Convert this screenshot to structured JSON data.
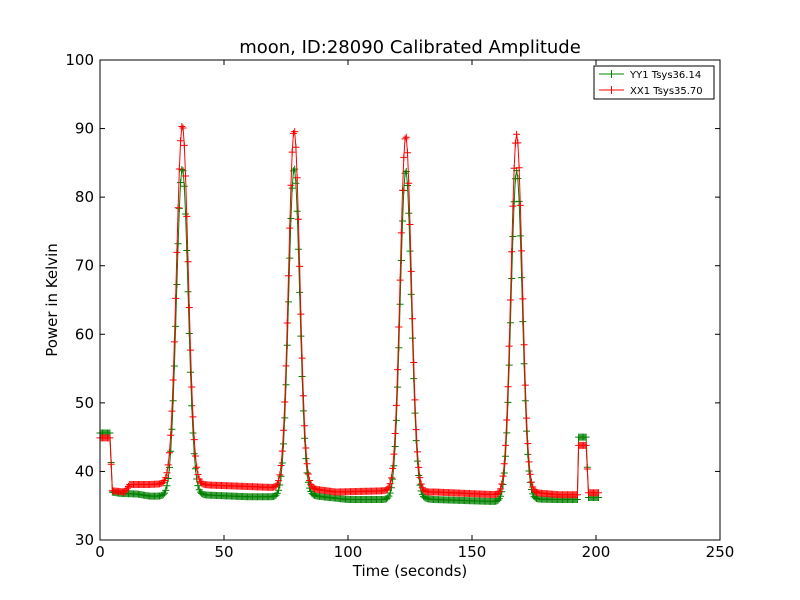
{
  "chart_data": {
    "type": "line",
    "title": "moon, ID:28090 Calibrated Amplitude",
    "xlabel": "Time (seconds)",
    "ylabel": "Power in Kelvin",
    "xlim": [
      0,
      250
    ],
    "ylim": [
      30,
      100
    ],
    "x_ticks": [
      "0",
      "50",
      "100",
      "150",
      "200",
      "250"
    ],
    "y_ticks": [
      "30",
      "40",
      "50",
      "60",
      "70",
      "80",
      "90",
      "100"
    ],
    "grid": false,
    "legend_position": "top-right",
    "marker": "+",
    "sample_interval": 0.5,
    "series": [
      {
        "name": "YY1 Tsys36.14",
        "color": "#008000",
        "baseline": [
          [
            0,
            45.6
          ],
          [
            4.4,
            45.6
          ],
          [
            4.6,
            37.0
          ],
          [
            8,
            36.8
          ],
          [
            15,
            36.7
          ],
          [
            20,
            36.4
          ],
          [
            26,
            36.4
          ],
          [
            35,
            36.8
          ],
          [
            40,
            36.6
          ],
          [
            60,
            36.3
          ],
          [
            75,
            36.3
          ],
          [
            85,
            36.5
          ],
          [
            100,
            35.9
          ],
          [
            118,
            35.9
          ],
          [
            125,
            36.2
          ],
          [
            135,
            35.9
          ],
          [
            160,
            35.6
          ],
          [
            172,
            36.0
          ],
          [
            185,
            35.9
          ],
          [
            192.6,
            35.9
          ],
          [
            192.8,
            45.0
          ],
          [
            196.4,
            45.0
          ],
          [
            196.6,
            36.2
          ],
          [
            201,
            36.2
          ]
        ],
        "peaks": [
          {
            "center": 33.2,
            "amplitude": 47.5,
            "sigma": 2.35
          },
          {
            "center": 78.3,
            "amplitude": 47.9,
            "sigma": 2.25
          },
          {
            "center": 123.3,
            "amplitude": 47.8,
            "sigma": 2.25
          },
          {
            "center": 168.0,
            "amplitude": 48.0,
            "sigma": 2.25
          }
        ]
      },
      {
        "name": "XX1 Tsys35.70",
        "color": "#ff0000",
        "baseline": [
          [
            0,
            44.9
          ],
          [
            4.4,
            44.9
          ],
          [
            4.6,
            37.2
          ],
          [
            10,
            37.0
          ],
          [
            12,
            38.1
          ],
          [
            20,
            38.1
          ],
          [
            26,
            38.2
          ],
          [
            35,
            38.2
          ],
          [
            45,
            38.0
          ],
          [
            60,
            37.8
          ],
          [
            73,
            37.6
          ],
          [
            85,
            37.5
          ],
          [
            95,
            37.0
          ],
          [
            118,
            37.2
          ],
          [
            125,
            37.0
          ],
          [
            135,
            37.0
          ],
          [
            160,
            36.6
          ],
          [
            172,
            37.0
          ],
          [
            185,
            36.6
          ],
          [
            192.6,
            36.6
          ],
          [
            192.8,
            43.8
          ],
          [
            196.4,
            43.8
          ],
          [
            196.6,
            36.9
          ],
          [
            201,
            36.9
          ]
        ],
        "peaks": [
          {
            "center": 33.2,
            "amplitude": 52.3,
            "sigma": 2.35
          },
          {
            "center": 78.3,
            "amplitude": 52.2,
            "sigma": 2.25
          },
          {
            "center": 123.3,
            "amplitude": 51.9,
            "sigma": 2.25
          },
          {
            "center": 168.0,
            "amplitude": 52.3,
            "sigma": 2.25
          }
        ]
      }
    ],
    "x_range_data": [
      0,
      201
    ]
  }
}
